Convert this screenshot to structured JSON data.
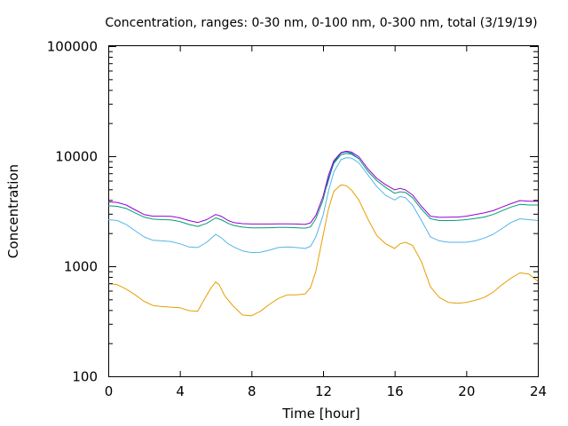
{
  "chart_data": {
    "type": "line",
    "title": "Concentration, ranges: 0-30 nm, 0-100 nm, 0-300 nm, total (3/19/19)",
    "xlabel": "Time [hour]",
    "ylabel": "Concentration",
    "xlim": [
      0,
      24
    ],
    "ylim": [
      100,
      100000
    ],
    "yscale": "log",
    "grid": false,
    "x_ticks": [
      0,
      4,
      8,
      12,
      16,
      20,
      24
    ],
    "x_tick_labels": [
      "0",
      "4",
      "8",
      "12",
      "16",
      "20",
      "24"
    ],
    "y_ticks": [
      100,
      1000,
      10000,
      100000
    ],
    "y_tick_labels": [
      "100",
      "1000",
      "10000",
      "100000"
    ],
    "series": [
      {
        "color": "#e69f00",
        "x": [
          0,
          0.5,
          1,
          1.5,
          2,
          2.5,
          3,
          3.5,
          4,
          4.5,
          5,
          5.3,
          5.7,
          6,
          6.2,
          6.5,
          7,
          7.5,
          8,
          8.5,
          9,
          9.5,
          10,
          10.5,
          11,
          11.3,
          11.6,
          12,
          12.3,
          12.6,
          13,
          13.3,
          13.6,
          14,
          14.5,
          15,
          15.5,
          16,
          16.3,
          16.6,
          17,
          17.5,
          18,
          18.5,
          19,
          19.5,
          20,
          20.5,
          21,
          21.5,
          22,
          22.5,
          23,
          23.5,
          24
        ],
        "values": [
          700,
          680,
          620,
          550,
          480,
          440,
          430,
          425,
          420,
          395,
          390,
          480,
          620,
          720,
          680,
          540,
          430,
          360,
          355,
          390,
          450,
          510,
          550,
          550,
          560,
          640,
          900,
          1900,
          3300,
          4800,
          5500,
          5400,
          4900,
          4000,
          2700,
          1900,
          1600,
          1450,
          1600,
          1650,
          1550,
          1100,
          650,
          520,
          470,
          460,
          470,
          490,
          520,
          580,
          680,
          780,
          870,
          850,
          730
        ]
      },
      {
        "color": "#56b4e9",
        "x": [
          0,
          0.5,
          1,
          1.5,
          2,
          2.5,
          3,
          3.5,
          4,
          4.5,
          5,
          5.5,
          6,
          6.3,
          6.7,
          7,
          7.5,
          8,
          8.5,
          9,
          9.5,
          10,
          10.5,
          11,
          11.3,
          11.6,
          12,
          12.3,
          12.6,
          13,
          13.3,
          13.6,
          14,
          14.5,
          15,
          15.5,
          16,
          16.3,
          16.6,
          17,
          17.5,
          18,
          18.5,
          19,
          19.5,
          20,
          20.5,
          21,
          21.5,
          22,
          22.5,
          23,
          23.5,
          24
        ],
        "values": [
          2650,
          2600,
          2400,
          2100,
          1850,
          1720,
          1700,
          1680,
          1600,
          1500,
          1480,
          1650,
          1950,
          1820,
          1600,
          1500,
          1380,
          1330,
          1340,
          1400,
          1480,
          1500,
          1480,
          1450,
          1520,
          1850,
          2900,
          4800,
          7200,
          9300,
          9700,
          9600,
          8700,
          6800,
          5300,
          4400,
          4000,
          4300,
          4200,
          3600,
          2600,
          1850,
          1700,
          1650,
          1650,
          1650,
          1700,
          1800,
          1950,
          2200,
          2500,
          2700,
          2650,
          2600
        ]
      },
      {
        "color": "#009e73",
        "x": [
          0,
          0.5,
          1,
          1.5,
          2,
          2.5,
          3,
          3.5,
          4,
          4.5,
          5,
          5.5,
          6,
          6.3,
          6.7,
          7,
          7.5,
          8,
          8.5,
          9,
          9.5,
          10,
          10.5,
          11,
          11.3,
          11.6,
          12,
          12.3,
          12.6,
          13,
          13.3,
          13.6,
          14,
          14.5,
          15,
          15.5,
          16,
          16.3,
          16.6,
          17,
          17.5,
          18,
          18.5,
          19,
          19.5,
          20,
          20.5,
          21,
          21.5,
          22,
          22.5,
          23,
          23.5,
          24
        ],
        "values": [
          3550,
          3500,
          3350,
          3050,
          2800,
          2680,
          2650,
          2640,
          2550,
          2400,
          2300,
          2450,
          2750,
          2650,
          2450,
          2350,
          2270,
          2230,
          2230,
          2240,
          2250,
          2250,
          2240,
          2220,
          2280,
          2700,
          4000,
          6300,
          8600,
          10300,
          10600,
          10400,
          9500,
          7300,
          6000,
          5200,
          4600,
          4750,
          4700,
          4200,
          3300,
          2700,
          2600,
          2600,
          2610,
          2650,
          2720,
          2800,
          2950,
          3200,
          3450,
          3650,
          3600,
          3600
        ]
      },
      {
        "color": "#0072b2",
        "x": [
          12.2,
          12.6,
          13,
          13.3,
          13.6,
          14
        ],
        "values": [
          5300,
          8800,
          10700,
          11000,
          10600,
          9500
        ]
      },
      {
        "color": "#9400d3",
        "x": [
          0,
          0.5,
          1,
          1.5,
          2,
          2.5,
          3,
          3.5,
          4,
          4.5,
          5,
          5.5,
          6,
          6.3,
          6.7,
          7,
          7.5,
          8,
          8.5,
          9,
          9.5,
          10,
          10.5,
          11,
          11.3,
          11.6,
          12,
          12.3,
          12.6,
          13,
          13.3,
          13.6,
          14,
          14.5,
          15,
          15.5,
          16,
          16.3,
          16.6,
          17,
          17.5,
          18,
          18.5,
          19,
          19.5,
          20,
          20.5,
          21,
          21.5,
          22,
          22.5,
          23,
          23.5,
          24
        ],
        "values": [
          3850,
          3800,
          3600,
          3250,
          2950,
          2850,
          2850,
          2840,
          2750,
          2600,
          2500,
          2650,
          2950,
          2850,
          2600,
          2500,
          2440,
          2420,
          2420,
          2420,
          2430,
          2430,
          2420,
          2400,
          2480,
          2900,
          4300,
          6700,
          9100,
          10800,
          11100,
          10900,
          9900,
          7700,
          6300,
          5500,
          4950,
          5100,
          4950,
          4450,
          3500,
          2850,
          2780,
          2790,
          2800,
          2850,
          2950,
          3050,
          3200,
          3450,
          3700,
          3950,
          3900,
          3900
        ]
      }
    ]
  }
}
